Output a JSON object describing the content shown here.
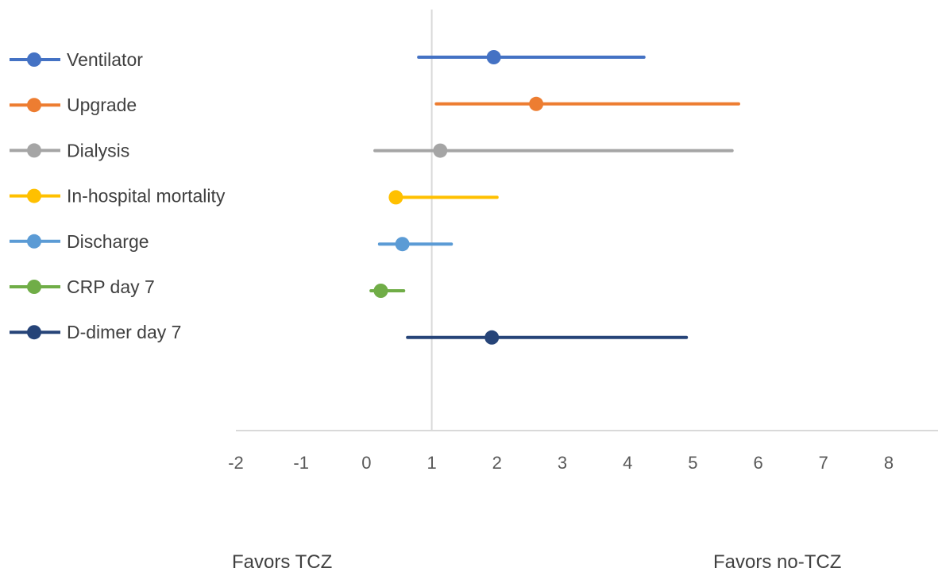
{
  "chart_data": {
    "type": "scatter",
    "subtype": "forest-plot",
    "x_ticks": [
      "-2",
      "-1",
      "0",
      "1",
      "2",
      "3",
      "4",
      "5",
      "6",
      "7",
      "8"
    ],
    "xlim": [
      -2,
      8
    ],
    "reference_line": 1,
    "grid": false,
    "legend_position": "left",
    "series": [
      {
        "name": "Ventilator",
        "estimate": 1.95,
        "lower": 0.8,
        "upper": 4.25,
        "color": "#4472C4"
      },
      {
        "name": "Upgrade",
        "estimate": 2.6,
        "lower": 1.07,
        "upper": 5.7,
        "color": "#ED7D31"
      },
      {
        "name": "Dialysis",
        "estimate": 1.13,
        "lower": 0.13,
        "upper": 5.6,
        "color": "#A5A5A5"
      },
      {
        "name": "In-hospital mortality",
        "estimate": 0.45,
        "lower": 0.45,
        "upper": 2.0,
        "color": "#FFC000"
      },
      {
        "name": "Discharge",
        "estimate": 0.55,
        "lower": 0.2,
        "upper": 1.3,
        "color": "#5B9BD5"
      },
      {
        "name": "CRP day 7",
        "estimate": 0.22,
        "lower": 0.07,
        "upper": 0.57,
        "color": "#70AD47"
      },
      {
        "name": "D-dimer day 7",
        "estimate": 1.92,
        "lower": 0.63,
        "upper": 4.9,
        "color": "#264478"
      }
    ],
    "annotations": {
      "left": "Favors TCZ",
      "right": "Favors no-TCZ"
    }
  }
}
